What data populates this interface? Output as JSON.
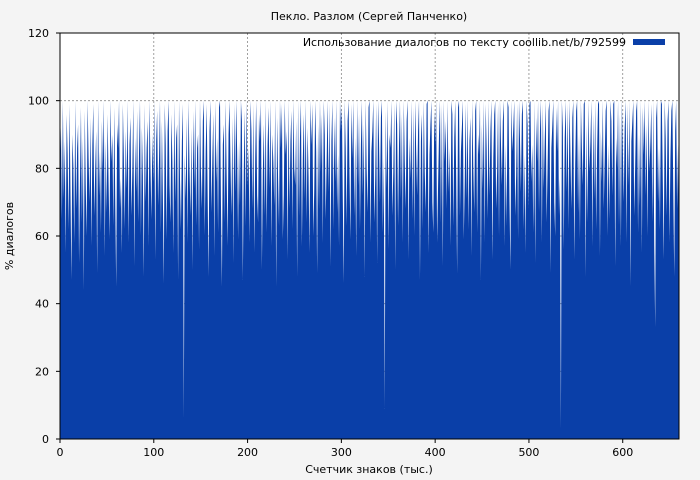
{
  "chart_data": {
    "type": "area",
    "title": "Пекло. Разлом (Сергей Панченко)",
    "xlabel": "Счетчик знаков (тыс.)",
    "ylabel": "% диалогов",
    "xlim": [
      0,
      660
    ],
    "ylim": [
      0,
      120
    ],
    "x_ticks": [
      0,
      100,
      200,
      300,
      400,
      500,
      600
    ],
    "y_ticks": [
      0,
      20,
      40,
      60,
      80,
      100,
      120
    ],
    "grid": true,
    "legend_position": "top-right",
    "series": [
      {
        "name": "Использование диалогов по тексту coollib.net/b/792599",
        "color": "#0a3fa8",
        "x_step": 1,
        "values_description_note": "",
        "values": [
          78,
          92,
          65,
          100,
          71,
          88,
          55,
          96,
          84,
          62,
          99,
          73,
          47,
          90,
          81,
          58,
          100,
          68,
          86,
          93,
          52,
          77,
          98,
          64,
          89,
          44,
          97,
          75,
          60,
          100,
          83,
          70,
          95,
          57,
          87,
          99,
          66,
          80,
          91,
          49,
          100,
          72,
          85,
          61,
          94,
          79,
          100,
          54,
          88,
          67,
          96,
          76,
          59,
          100,
          82,
          90,
          63,
          98,
          71,
          45,
          93,
          86,
          100,
          68,
          77,
          55,
          99,
          84,
          62,
          91,
          74,
          100,
          58,
          87,
          95,
          66,
          80,
          100,
          51,
          89,
          73,
          97,
          64,
          85,
          100,
          60,
          92,
          78,
          48,
          99,
          70,
          86,
          94,
          57,
          100,
          81,
          65,
          90,
          76,
          100,
          53,
          88,
          97,
          69,
          83,
          100,
          61,
          94,
          72,
          46,
          99,
          87,
          59,
          91,
          100,
          75,
          64,
          96,
          82,
          55,
          100,
          70,
          89,
          93,
          47,
          100,
          77,
          62,
          88,
          99,
          6,
          84,
          71,
          95,
          58,
          100,
          80,
          66,
          92,
          50,
          97,
          74,
          100,
          63,
          86,
          90,
          56,
          100,
          79,
          68,
          94,
          100,
          60,
          85,
          99,
          73,
          48,
          91,
          100,
          67,
          83,
          96,
          54,
          100,
          76,
          89,
          61,
          98,
          100,
          70,
          45,
          87,
          93,
          64,
          100,
          78,
          57,
          90,
          100,
          82,
          66,
          95,
          52,
          99,
          73,
          100,
          85,
          59,
          88,
          69,
          100,
          94,
          47,
          80,
          97,
          63,
          100,
          75,
          86,
          58,
          100,
          91,
          68,
          99,
          55,
          83,
          100,
          72,
          64,
          96,
          88,
          100,
          50,
          79,
          93,
          66,
          100,
          61,
          87,
          98,
          74,
          100,
          57,
          90,
          82,
          69,
          100,
          45,
          95,
          77,
          63,
          100,
          86,
          99,
          59,
          72,
          100,
          84,
          91,
          53,
          100,
          68,
          88,
          97,
          62,
          100,
          80,
          75,
          94,
          48,
          100,
          66,
          89,
          100,
          57,
          83,
          96,
          71,
          100,
          64,
          92,
          78,
          55,
          100,
          87,
          99,
          60,
          74,
          100,
          85,
          49,
          93,
          68,
          100,
          79,
          96,
          58,
          100,
          90,
          65,
          82,
          100,
          73,
          99,
          51,
          88,
          100,
          62,
          95,
          76,
          100,
          67,
          84,
          57,
          100,
          91,
          98,
          70,
          46,
          100,
          86,
          63,
          94,
          100,
          78,
          59,
          99,
          83,
          100,
          66,
          89,
          54,
          100,
          75,
          96,
          62,
          87,
          100,
          72,
          93,
          48,
          100,
          80,
          67,
          98,
          100,
          58,
          85,
          91,
          100,
          64,
          77,
          99,
          52,
          100,
          88,
          70,
          95,
          100,
          61,
          83,
          9,
          97,
          74,
          100,
          56,
          90,
          86,
          100,
          66,
          79,
          99,
          50,
          100,
          93,
          63,
          87,
          100,
          71,
          96,
          58,
          100,
          82,
          68,
          94,
          100,
          53,
          89,
          77,
          100,
          65,
          98,
          60,
          100,
          85,
          72,
          91,
          100,
          47,
          88,
          96,
          62,
          100,
          79,
          67,
          99,
          100,
          55,
          84,
          93,
          100,
          70,
          61,
          97,
          87,
          100,
          58,
          75,
          90,
          100,
          64,
          99,
          51,
          100,
          82,
          94,
          68,
          100,
          73,
          86,
          57,
          100,
          96,
          63,
          89,
          100,
          78,
          49,
          98,
          100,
          66,
          85,
          92,
          100,
          59,
          76,
          99,
          71,
          100,
          62,
          88,
          95,
          54,
          100,
          80,
          67,
          97,
          100,
          61,
          90,
          84,
          100,
          47,
          93,
          74,
          100,
          58,
          99,
          86,
          65,
          100,
          72,
          91,
          100,
          53,
          83,
          96,
          100,
          68,
          79,
          99,
          60,
          100,
          88,
          75,
          94,
          100,
          57,
          87,
          63,
          100,
          98,
          70,
          50,
          100,
          85,
          92,
          100,
          66,
          78,
          99,
          59,
          100,
          89,
          73,
          96,
          100,
          62,
          84,
          55,
          100,
          93,
          68,
          99,
          100,
          76,
          87,
          61,
          100,
          52,
          95,
          82,
          100,
          67,
          91,
          100,
          58,
          99,
          74,
          88,
          100,
          64,
          80,
          97,
          100,
          49,
          86,
          93,
          100,
          70,
          60,
          98,
          85,
          100,
          66,
          77,
          3,
          100,
          92,
          56,
          89,
          100,
          73,
          99,
          62,
          100,
          84,
          68,
          95,
          100,
          53,
          81,
          97,
          100,
          67,
          90,
          59,
          100,
          86,
          75,
          99,
          100,
          48,
          93,
          64,
          100,
          79,
          88,
          100,
          57,
          96,
          71,
          100,
          62,
          85,
          99,
          100,
          54,
          91,
          76,
          100,
          68,
          83,
          97,
          100,
          60,
          87,
          65,
          100,
          94,
          72,
          99,
          100,
          51,
          89,
          80,
          100,
          63,
          96,
          57,
          100,
          86,
          70,
          92,
          100,
          58,
          99,
          75,
          100,
          45,
          88,
          94,
          100,
          66,
          81,
          97,
          100,
          61,
          90,
          69,
          100,
          55,
          98,
          84,
          100,
          72,
          93,
          60,
          100,
          79,
          88,
          99,
          64,
          100,
          57,
          33,
          95,
          100,
          70,
          86,
          62,
          100,
          99,
          76,
          53,
          100,
          89,
          66,
          94,
          100,
          58,
          83,
          97,
          100,
          73,
          48,
          91,
          100,
          68,
          87,
          56
        ]
      }
    ]
  }
}
